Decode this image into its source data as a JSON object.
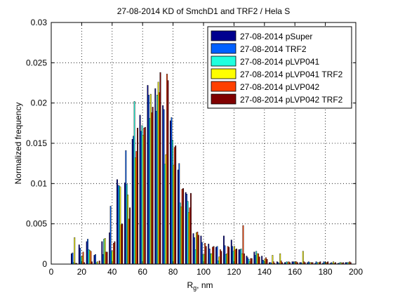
{
  "chart_data": {
    "type": "bar",
    "title": "27-08-2014 KD of SmchD1 and TRF2 / Hela S",
    "xlabel_main": "R",
    "xlabel_sub": "g",
    "xlabel_rest": ", nm",
    "ylabel": "Normalized frequency",
    "xlim": [
      0,
      200
    ],
    "ylim": [
      0,
      0.03
    ],
    "xticks": [
      0,
      20,
      40,
      60,
      80,
      100,
      120,
      140,
      160,
      180,
      200
    ],
    "yticks": [
      0,
      0.005,
      0.01,
      0.015,
      0.02,
      0.025,
      0.03
    ],
    "ytick_labels": [
      "0",
      "0.005",
      "0.01",
      "0.015",
      "0.02",
      "0.025",
      "0.03"
    ],
    "grid": true,
    "legend_position": "top-right",
    "categories": [
      15,
      20,
      25,
      30,
      35,
      40,
      45,
      50,
      55,
      60,
      65,
      70,
      75,
      80,
      85,
      90,
      95,
      100,
      105,
      110,
      115,
      120,
      125,
      130,
      135,
      140,
      145,
      150,
      155,
      160,
      165,
      170,
      175,
      180,
      185,
      190,
      195,
      200
    ],
    "series": [
      {
        "name": "27-08-2014 pSuper",
        "color": "#00008f",
        "values": [
          0.0013,
          0.0024,
          0.0028,
          0.0011,
          0.0028,
          0.0039,
          0.0105,
          0.0101,
          0.0155,
          0.0185,
          0.0222,
          0.0218,
          0.0197,
          0.0178,
          0.0117,
          0.0089,
          0.0038,
          0.0035,
          0.0025,
          0.0021,
          0.0035,
          0.003,
          0.0018,
          0.001,
          0.0015,
          0.001,
          0.0002,
          0.0003,
          0.0002,
          0.0003,
          0.0002,
          0.0002,
          0.0001,
          0.0001,
          0.0001,
          0.0001,
          0.0002,
          0.0
        ]
      },
      {
        "name": "27-08-2014 TRF2",
        "color": "#0060ff",
        "values": [
          0.0014,
          0.002,
          0.0031,
          0.0012,
          0.0012,
          0.0072,
          0.0098,
          0.0141,
          0.0159,
          0.0165,
          0.021,
          0.019,
          0.0192,
          0.0182,
          0.0125,
          0.0087,
          0.0033,
          0.0027,
          0.0019,
          0.0022,
          0.0023,
          0.0022,
          0.0018,
          0.0008,
          0.0011,
          0.0005,
          0.0002,
          0.0002,
          0.0002,
          0.0003,
          0.0002,
          0.0003,
          0.0003,
          0.0003,
          0.0002,
          0.0001,
          0.0002,
          0.0
        ]
      },
      {
        "name": "27-08-2014 pLVP041",
        "color": "#20ffdf",
        "values": [
          0.0002,
          0.0009,
          0.0018,
          0.0002,
          0.0031,
          0.0016,
          0.0097,
          0.0099,
          0.0202,
          0.0172,
          0.0181,
          0.021,
          0.0124,
          0.0154,
          0.0076,
          0.0078,
          0.0018,
          0.0012,
          0.0013,
          0.0004,
          0.0012,
          0.0016,
          0.0019,
          0.0006,
          0.0016,
          0.0004,
          0.0001,
          0.0001,
          0.0003,
          0.0002,
          0.0001,
          0.0002,
          0.0002,
          0.0002,
          0.0001,
          0.0002,
          0.0002,
          0.0
        ]
      },
      {
        "name": "27-08-2014 pLVP041 TRF2",
        "color": "#ffff00",
        "values": [
          0.0033,
          0.001,
          0.0017,
          0.0003,
          0.0032,
          0.0016,
          0.0096,
          0.0086,
          0.0132,
          0.016,
          0.0211,
          0.0226,
          0.0136,
          0.0123,
          0.0071,
          0.0064,
          0.0039,
          0.0012,
          0.0013,
          0.0009,
          0.0013,
          0.0022,
          0.0013,
          0.0003,
          0.0013,
          0.0006,
          0.0011,
          0.0013,
          0.0002,
          0.0003,
          0.0016,
          0.0002,
          0.0002,
          0.0002,
          0.0003,
          0.0002,
          0.0002,
          0.0
        ]
      },
      {
        "name": "27-08-2014 pLVP042",
        "color": "#ff4000",
        "values": [
          0.0001,
          0.0015,
          0.0016,
          0.0,
          0.0015,
          0.0026,
          0.0049,
          0.0056,
          0.014,
          0.0169,
          0.0188,
          0.0213,
          0.0236,
          0.0145,
          0.0093,
          0.007,
          0.004,
          0.0026,
          0.0021,
          0.0018,
          0.0022,
          0.0018,
          0.0048,
          0.0007,
          0.0013,
          0.0008,
          0.0003,
          0.0004,
          0.0003,
          0.0003,
          0.0003,
          0.0002,
          0.0002,
          0.0002,
          0.0001,
          0.0001,
          0.0003,
          0.0
        ]
      },
      {
        "name": "27-08-2014 pLVP042 TRF2",
        "color": "#800000",
        "values": [
          0.0001,
          0.0002,
          0.0003,
          0.0004,
          0.0015,
          0.0028,
          0.005,
          0.007,
          0.0169,
          0.017,
          0.0195,
          0.0238,
          0.0228,
          0.0147,
          0.0094,
          0.0088,
          0.0036,
          0.0022,
          0.0022,
          0.0016,
          0.0021,
          0.0019,
          0.0013,
          0.0007,
          0.0009,
          0.0006,
          0.0001,
          0.0002,
          0.0002,
          0.0002,
          0.0002,
          0.0002,
          0.0003,
          0.0003,
          0.0002,
          0.0002,
          0.0002,
          0.0
        ]
      }
    ]
  }
}
